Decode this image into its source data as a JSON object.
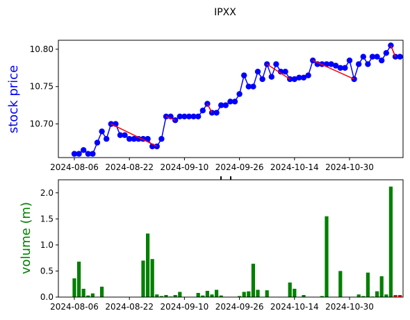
{
  "chart_data": [
    {
      "type": "line",
      "title": "IPXX",
      "ylabel": "stock price",
      "x_ticks": [
        "2024-08-06",
        "2024-08-22",
        "2024-09-10",
        "2024-09-26",
        "2024-10-14",
        "2024-10-30"
      ],
      "y_ticks": [
        "10.70",
        "10.75",
        "10.80"
      ],
      "ylim": [
        10.655,
        10.812
      ],
      "x": [
        0,
        1,
        2,
        3,
        4,
        5,
        6,
        7,
        8,
        9,
        10,
        11,
        12,
        13,
        14,
        15,
        16,
        17,
        18,
        19,
        20,
        21,
        22,
        23,
        24,
        25,
        26,
        27,
        28,
        29,
        30,
        31,
        32,
        33,
        34,
        35,
        36,
        37,
        38,
        39,
        40,
        41,
        42,
        43,
        44,
        45,
        46,
        47,
        48,
        49,
        50,
        51,
        52,
        53,
        54,
        55,
        56,
        57,
        58,
        59,
        60,
        61,
        62,
        63,
        64,
        65,
        66,
        67,
        68,
        69,
        70,
        71
      ],
      "values": [
        10.66,
        10.66,
        10.665,
        10.66,
        10.66,
        10.675,
        10.69,
        10.68,
        10.7,
        10.7,
        10.685,
        10.685,
        10.68,
        10.68,
        10.68,
        10.68,
        10.68,
        10.67,
        10.67,
        10.68,
        10.71,
        10.71,
        10.705,
        10.71,
        10.71,
        10.71,
        10.71,
        10.71,
        10.718,
        10.727,
        10.715,
        10.715,
        10.725,
        10.725,
        10.73,
        10.73,
        10.74,
        10.765,
        10.75,
        10.75,
        10.77,
        10.76,
        10.78,
        10.763,
        10.78,
        10.77,
        10.77,
        10.76,
        10.76,
        10.762,
        10.762,
        10.765,
        10.785,
        10.78,
        10.78,
        10.78,
        10.78,
        10.778,
        10.775,
        10.775,
        10.785,
        10.76,
        10.78,
        10.79,
        10.78,
        10.79,
        10.79,
        10.785,
        10.795,
        10.805,
        10.79,
        10.79
      ],
      "line_color": "#0000ff",
      "marker_color": "#0000ff",
      "trend_segments": [
        {
          "x": [
            8,
            18
          ],
          "y": [
            10.7,
            10.67
          ]
        },
        {
          "x": [
            20,
            22
          ],
          "y": [
            10.71,
            10.705
          ]
        },
        {
          "x": [
            29,
            30
          ],
          "y": [
            10.727,
            10.715
          ]
        },
        {
          "x": [
            42,
            47
          ],
          "y": [
            10.78,
            10.76
          ]
        },
        {
          "x": [
            52,
            61
          ],
          "y": [
            10.785,
            10.76
          ]
        },
        {
          "x": [
            69,
            70
          ],
          "y": [
            10.805,
            10.79
          ]
        }
      ],
      "trend_color": "#ff0000"
    },
    {
      "type": "bar",
      "ylabel": "volume (m)",
      "x_ticks": [
        "2024-08-06",
        "2024-08-22",
        "2024-09-10",
        "2024-09-26",
        "2024-10-14",
        "2024-10-30"
      ],
      "y_ticks": [
        "0.0",
        "0.5",
        "1.0",
        "1.5",
        "2.0"
      ],
      "ylim": [
        0,
        2.25
      ],
      "x": [
        0,
        1,
        2,
        3,
        4,
        5,
        6,
        7,
        8,
        9,
        10,
        11,
        12,
        13,
        14,
        15,
        16,
        17,
        18,
        19,
        20,
        21,
        22,
        23,
        24,
        25,
        26,
        27,
        28,
        29,
        30,
        31,
        32,
        33,
        34,
        35,
        36,
        37,
        38,
        39,
        40,
        41,
        42,
        43,
        44,
        45,
        46,
        47,
        48,
        49,
        50,
        51,
        52,
        53,
        54,
        55,
        56,
        57,
        58,
        59,
        60,
        61,
        62,
        63,
        64,
        65,
        66,
        67,
        68,
        69,
        70,
        71
      ],
      "values": [
        0.36,
        0.68,
        0.16,
        0.03,
        0.07,
        0,
        0.2,
        0,
        0,
        0,
        0,
        0,
        0,
        0,
        0,
        0.7,
        1.22,
        0.73,
        0.05,
        0.02,
        0.04,
        0.01,
        0.04,
        0.1,
        0,
        0,
        0,
        0.08,
        0.03,
        0.12,
        0.05,
        0.14,
        0.03,
        0,
        0,
        0,
        0.02,
        0.1,
        0.11,
        0.64,
        0.14,
        0,
        0.13,
        0,
        0,
        0,
        0,
        0.28,
        0.16,
        0,
        0.04,
        0,
        0,
        0,
        0.02,
        1.55,
        0,
        0,
        0.5,
        0,
        0,
        0,
        0.05,
        0.02,
        0.47,
        0.01,
        0.11,
        0.4,
        0.05,
        2.12,
        0.04,
        0.04
      ],
      "bar_color": "#008000",
      "highlight_color": "#ff0000",
      "highlight_index": [
        70,
        71
      ]
    }
  ]
}
